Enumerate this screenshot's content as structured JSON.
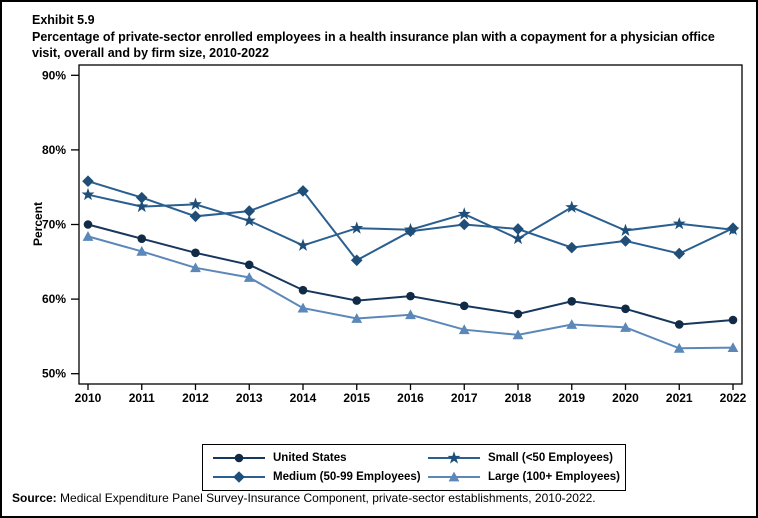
{
  "header": {
    "exhibit": "Exhibit 5.9",
    "title": "Percentage of private-sector enrolled employees in a health insurance plan with a copayment for a physician office visit, overall and by firm size, 2010-2022"
  },
  "chart_data": {
    "type": "line",
    "x": [
      2010,
      2011,
      2012,
      2013,
      2014,
      2015,
      2016,
      2017,
      2018,
      2019,
      2020,
      2021,
      2022
    ],
    "series": [
      {
        "name": "United States",
        "marker": "circle",
        "marker_color": "#112a46",
        "line_color": "#17375e",
        "values": [
          70.0,
          68.1,
          66.2,
          64.6,
          61.2,
          59.8,
          60.4,
          59.1,
          58.0,
          59.7,
          58.7,
          56.6,
          57.2
        ]
      },
      {
        "name": "Medium (50-99 Employees)",
        "marker": "diamond",
        "marker_color": "#1f4e79",
        "line_color": "#2a5f8f",
        "values": [
          75.8,
          73.6,
          71.1,
          71.8,
          74.5,
          65.2,
          69.1,
          70.0,
          69.4,
          66.9,
          67.8,
          66.1,
          69.5
        ]
      },
      {
        "name": "Small (<50 Employees)",
        "marker": "star",
        "marker_color": "#1f4e79",
        "line_color": "#2a5f8f",
        "values": [
          74.0,
          72.4,
          72.7,
          70.5,
          67.2,
          69.5,
          69.3,
          71.4,
          68.1,
          72.3,
          69.2,
          70.1,
          69.3
        ]
      },
      {
        "name": "Large (100+ Employees)",
        "marker": "triangle",
        "marker_color": "#5b87b9",
        "line_color": "#5b87b9",
        "values": [
          68.4,
          66.4,
          64.2,
          62.9,
          58.8,
          57.4,
          57.9,
          55.9,
          55.2,
          56.6,
          56.2,
          53.4,
          53.5
        ]
      }
    ],
    "ylabel": "Percent",
    "ylim": [
      50,
      90
    ],
    "y_ticks": [
      50,
      60,
      70,
      80,
      90
    ],
    "y_tick_labels": [
      "50%",
      "60%",
      "70%",
      "80%",
      "90%"
    ],
    "grid": false,
    "legend_position": "bottom",
    "legend_order": [
      "United States",
      "Small (<50 Employees)",
      "Medium (50-99 Employees)",
      "Large (100+ Employees)"
    ]
  },
  "source": {
    "label": "Source:",
    "text": " Medical Expenditure Panel Survey-Insurance Component, private-sector establishments, 2010-2022."
  }
}
